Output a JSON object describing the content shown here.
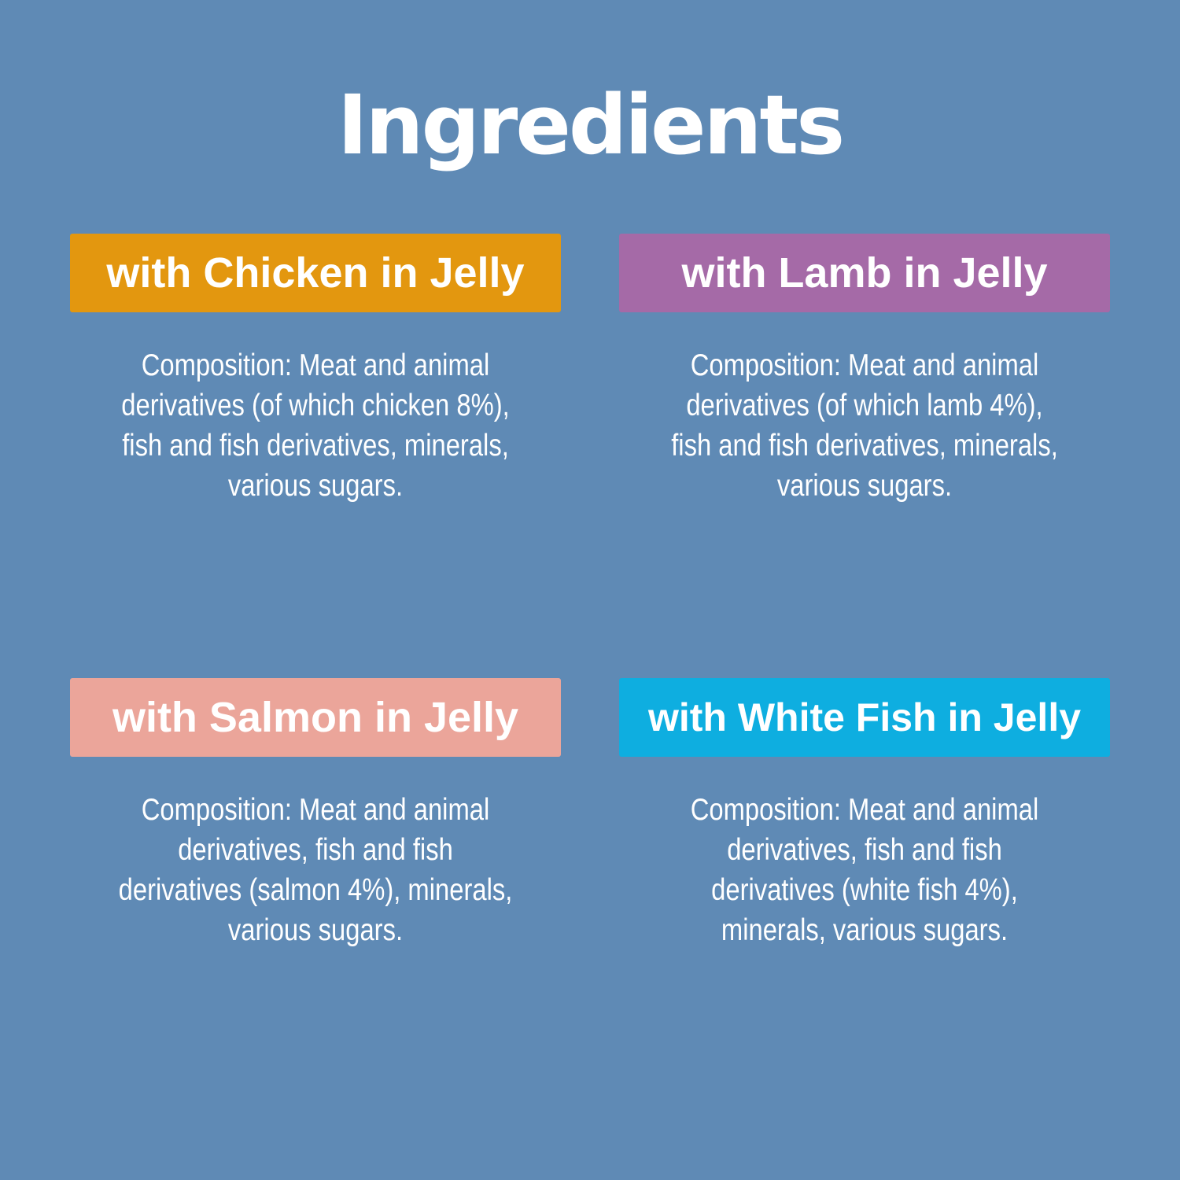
{
  "title": "Ingredients",
  "variants": [
    {
      "label": "with Chicken in Jelly",
      "color": "#e3970f",
      "lines": [
        "Composition: Meat and animal",
        "derivatives (of which chicken 8%),",
        "fish and fish derivatives, minerals,",
        "various sugars."
      ]
    },
    {
      "label": "with Lamb in Jelly",
      "color": "#a56aa7",
      "lines": [
        "Composition: Meat and animal",
        "derivatives (of which lamb 4%),",
        "fish and fish derivatives, minerals,",
        "various sugars."
      ]
    },
    {
      "label": "with Salmon in Jelly",
      "color": "#eba59a",
      "lines": [
        "Composition: Meat and animal",
        "derivatives, fish and fish",
        "derivatives (salmon 4%), minerals,",
        "various sugars."
      ]
    },
    {
      "label": "with White Fish in Jelly",
      "color": "#0eaee0",
      "lines": [
        "Composition: Meat and animal",
        "derivatives, fish and fish",
        "derivatives (white fish 4%),",
        "minerals, various sugars."
      ]
    }
  ]
}
